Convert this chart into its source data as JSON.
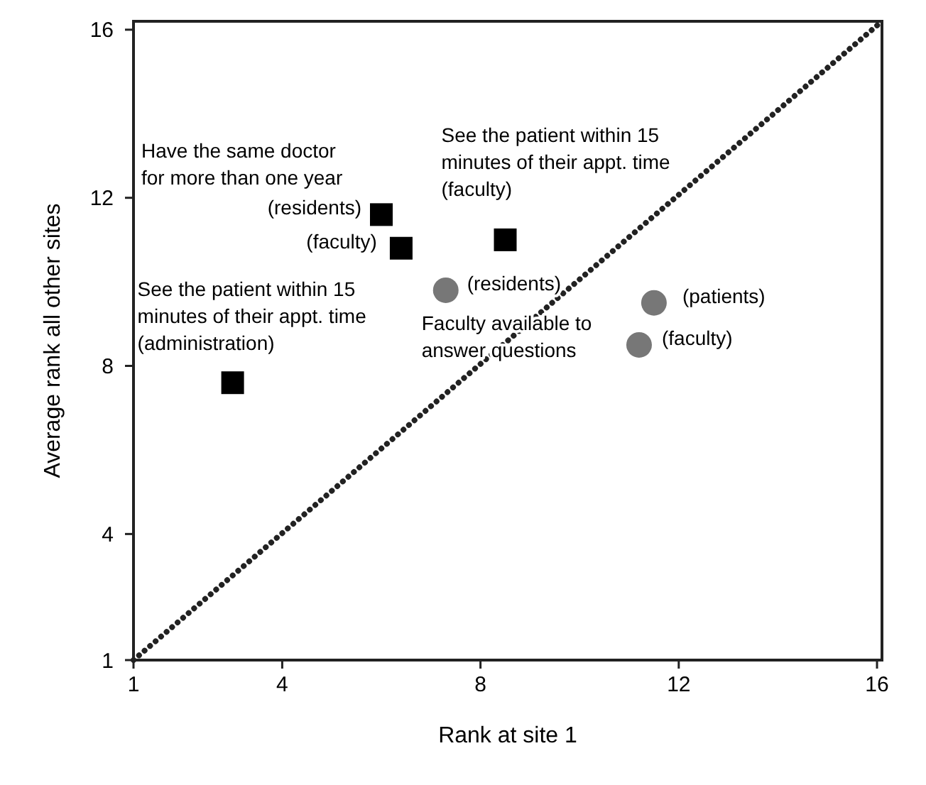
{
  "chart_data": {
    "type": "scatter",
    "xlabel": "Rank at site 1",
    "ylabel": "Average rank all other sites",
    "xlim": [
      1,
      16.1
    ],
    "ylim": [
      1,
      16.2
    ],
    "xticks": [
      1,
      4,
      8,
      12,
      16
    ],
    "yticks": [
      1,
      4,
      8,
      12,
      16
    ],
    "grid": false,
    "series": [
      {
        "type": "line",
        "color": "#222222",
        "line_style": "dotted",
        "x": [
          1,
          16.1
        ],
        "values": [
          1,
          16.2
        ]
      },
      {
        "color": "#000000",
        "marker": "square",
        "x": [
          6.0,
          6.4,
          8.5,
          3.0
        ],
        "values": [
          11.6,
          10.8,
          11.0,
          7.6
        ]
      },
      {
        "color": "#777777",
        "marker": "circle",
        "x": [
          7.3,
          11.5,
          11.2
        ],
        "values": [
          9.8,
          9.5,
          8.5
        ]
      }
    ],
    "annotations": [
      {
        "text": "Have the same doctor\nfor more than one year",
        "x": 6.0,
        "y": 11.6
      },
      {
        "text": "(residents)",
        "x": 6.0,
        "y": 11.6
      },
      {
        "text": "(faculty)",
        "x": 6.4,
        "y": 10.8
      },
      {
        "text": "See the patient within 15\nminutes of their appt. time\n(faculty)",
        "x": 8.5,
        "y": 11.0
      },
      {
        "text": "See the patient within 15\nminutes of their appt. time\n(administration)",
        "x": 3.0,
        "y": 7.6
      },
      {
        "text": "(residents)",
        "x": 7.3,
        "y": 9.8
      },
      {
        "text": "Faculty available to\nanswer questions",
        "x": 7.3,
        "y": 9.8
      },
      {
        "text": "(patients)",
        "x": 11.5,
        "y": 9.5
      },
      {
        "text": "(faculty)",
        "x": 11.2,
        "y": 8.5
      }
    ]
  }
}
